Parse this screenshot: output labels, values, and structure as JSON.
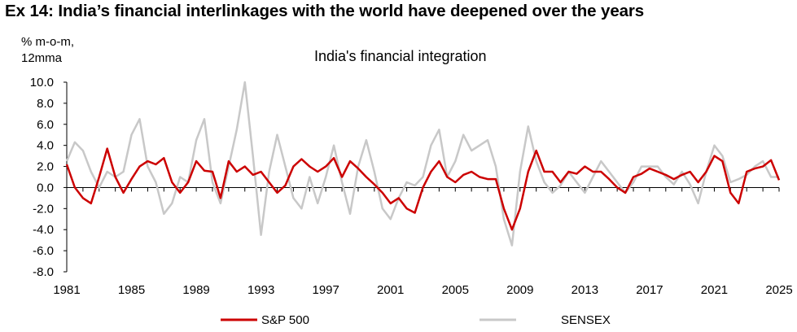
{
  "exhibit_title": "Ex 14: India’s financial interlinkages with the world have deepened over the years",
  "chart_data": {
    "type": "line",
    "title": "India's financial integration",
    "ylabel": "% m-o-m, 12mma",
    "ylabel_lines": [
      "% m-o-m,",
      "12mma"
    ],
    "xlabel": "",
    "ylim": [
      -8.0,
      10.0
    ],
    "xlim": [
      1981,
      2025
    ],
    "y_ticks": [
      "10.0",
      "8.0",
      "6.0",
      "4.0",
      "2.0",
      "0.0",
      "-2.0",
      "-4.0",
      "-6.0",
      "-8.0"
    ],
    "x_ticks": [
      "1981",
      "1985",
      "1989",
      "1993",
      "1997",
      "2001",
      "2005",
      "2009",
      "2013",
      "2017",
      "2021",
      "2025"
    ],
    "grid": false,
    "legend_position": "bottom",
    "series": [
      {
        "name": "S&P 500",
        "color": "#cc0000",
        "x": [
          1981.0,
          1981.5,
          1982.0,
          1982.5,
          1983.0,
          1983.5,
          1984.0,
          1984.5,
          1985.0,
          1985.5,
          1986.0,
          1986.5,
          1987.0,
          1987.5,
          1988.0,
          1988.5,
          1989.0,
          1989.5,
          1990.0,
          1990.5,
          1991.0,
          1991.5,
          1992.0,
          1992.5,
          1993.0,
          1993.5,
          1994.0,
          1994.5,
          1995.0,
          1995.5,
          1996.0,
          1996.5,
          1997.0,
          1997.5,
          1998.0,
          1998.5,
          1999.0,
          1999.5,
          2000.0,
          2000.5,
          2001.0,
          2001.5,
          2002.0,
          2002.5,
          2003.0,
          2003.5,
          2004.0,
          2004.5,
          2005.0,
          2005.5,
          2006.0,
          2006.5,
          2007.0,
          2007.5,
          2008.0,
          2008.5,
          2009.0,
          2009.5,
          2010.0,
          2010.5,
          2011.0,
          2011.5,
          2012.0,
          2012.5,
          2013.0,
          2013.5,
          2014.0,
          2014.5,
          2015.0,
          2015.5,
          2016.0,
          2016.5,
          2017.0,
          2017.5,
          2018.0,
          2018.5,
          2019.0,
          2019.5,
          2020.0,
          2020.5,
          2021.0,
          2021.5,
          2022.0,
          2022.5,
          2023.0,
          2023.5,
          2024.0,
          2024.5,
          2025.0
        ],
        "values": [
          2.2,
          0.0,
          -1.0,
          -1.5,
          1.0,
          3.7,
          1.0,
          -0.5,
          0.8,
          2.0,
          2.5,
          2.2,
          2.8,
          0.5,
          -0.5,
          0.5,
          2.5,
          1.6,
          1.5,
          -1.0,
          2.5,
          1.5,
          2.0,
          1.2,
          1.5,
          0.5,
          -0.5,
          0.2,
          2.0,
          2.7,
          2.0,
          1.5,
          2.0,
          2.8,
          1.0,
          2.5,
          1.8,
          1.0,
          0.3,
          -0.5,
          -1.5,
          -1.0,
          -2.0,
          -2.4,
          0.0,
          1.5,
          2.5,
          1.0,
          0.5,
          1.2,
          1.5,
          1.0,
          0.8,
          0.8,
          -2.0,
          -4.0,
          -2.0,
          1.5,
          3.5,
          1.5,
          1.5,
          0.5,
          1.5,
          1.3,
          2.0,
          1.5,
          1.5,
          0.8,
          0.0,
          -0.5,
          1.0,
          1.3,
          1.8,
          1.5,
          1.2,
          0.8,
          1.2,
          1.5,
          0.5,
          1.5,
          3.0,
          2.5,
          -0.5,
          -1.5,
          1.5,
          1.8,
          2.0,
          2.6,
          0.7
        ]
      },
      {
        "name": "SENSEX",
        "color": "#c8c8c8",
        "x": [
          1981.0,
          1981.5,
          1982.0,
          1982.5,
          1983.0,
          1983.5,
          1984.0,
          1984.5,
          1985.0,
          1985.5,
          1986.0,
          1986.5,
          1987.0,
          1987.5,
          1988.0,
          1988.5,
          1989.0,
          1989.5,
          1990.0,
          1990.5,
          1991.0,
          1991.5,
          1992.0,
          1992.5,
          1993.0,
          1993.5,
          1994.0,
          1994.5,
          1995.0,
          1995.5,
          1996.0,
          1996.5,
          1997.0,
          1997.5,
          1998.0,
          1998.5,
          1999.0,
          1999.5,
          2000.0,
          2000.5,
          2001.0,
          2001.5,
          2002.0,
          2002.5,
          2003.0,
          2003.5,
          2004.0,
          2004.5,
          2005.0,
          2005.5,
          2006.0,
          2006.5,
          2007.0,
          2007.5,
          2008.0,
          2008.5,
          2009.0,
          2009.5,
          2010.0,
          2010.5,
          2011.0,
          2011.5,
          2012.0,
          2012.5,
          2013.0,
          2013.5,
          2014.0,
          2014.5,
          2015.0,
          2015.5,
          2016.0,
          2016.5,
          2017.0,
          2017.5,
          2018.0,
          2018.5,
          2019.0,
          2019.5,
          2020.0,
          2020.5,
          2021.0,
          2021.5,
          2022.0,
          2022.5,
          2023.0,
          2023.5,
          2024.0,
          2024.5,
          2025.0
        ],
        "values": [
          2.5,
          4.3,
          3.5,
          1.5,
          0.0,
          1.5,
          1.0,
          1.5,
          5.0,
          6.5,
          2.0,
          0.5,
          -2.5,
          -1.5,
          1.0,
          0.5,
          4.5,
          6.5,
          0.5,
          -1.5,
          2.0,
          5.5,
          10.0,
          3.0,
          -4.5,
          1.5,
          5.0,
          2.0,
          -1.0,
          -2.0,
          1.0,
          -1.5,
          1.0,
          4.0,
          0.5,
          -2.5,
          2.0,
          4.5,
          1.5,
          -2.0,
          -3.0,
          -1.0,
          0.5,
          0.2,
          1.0,
          4.0,
          5.5,
          1.0,
          2.5,
          5.0,
          3.5,
          4.0,
          4.5,
          2.0,
          -3.0,
          -5.5,
          1.5,
          5.8,
          2.5,
          0.5,
          -0.5,
          0.2,
          1.5,
          0.5,
          -0.5,
          1.0,
          2.5,
          1.5,
          0.5,
          -0.5,
          0.5,
          2.0,
          2.0,
          2.0,
          1.0,
          0.3,
          1.5,
          0.3,
          -1.5,
          1.5,
          4.0,
          3.0,
          0.5,
          0.8,
          1.2,
          2.0,
          2.5,
          1.0,
          1.0
        ]
      }
    ]
  }
}
